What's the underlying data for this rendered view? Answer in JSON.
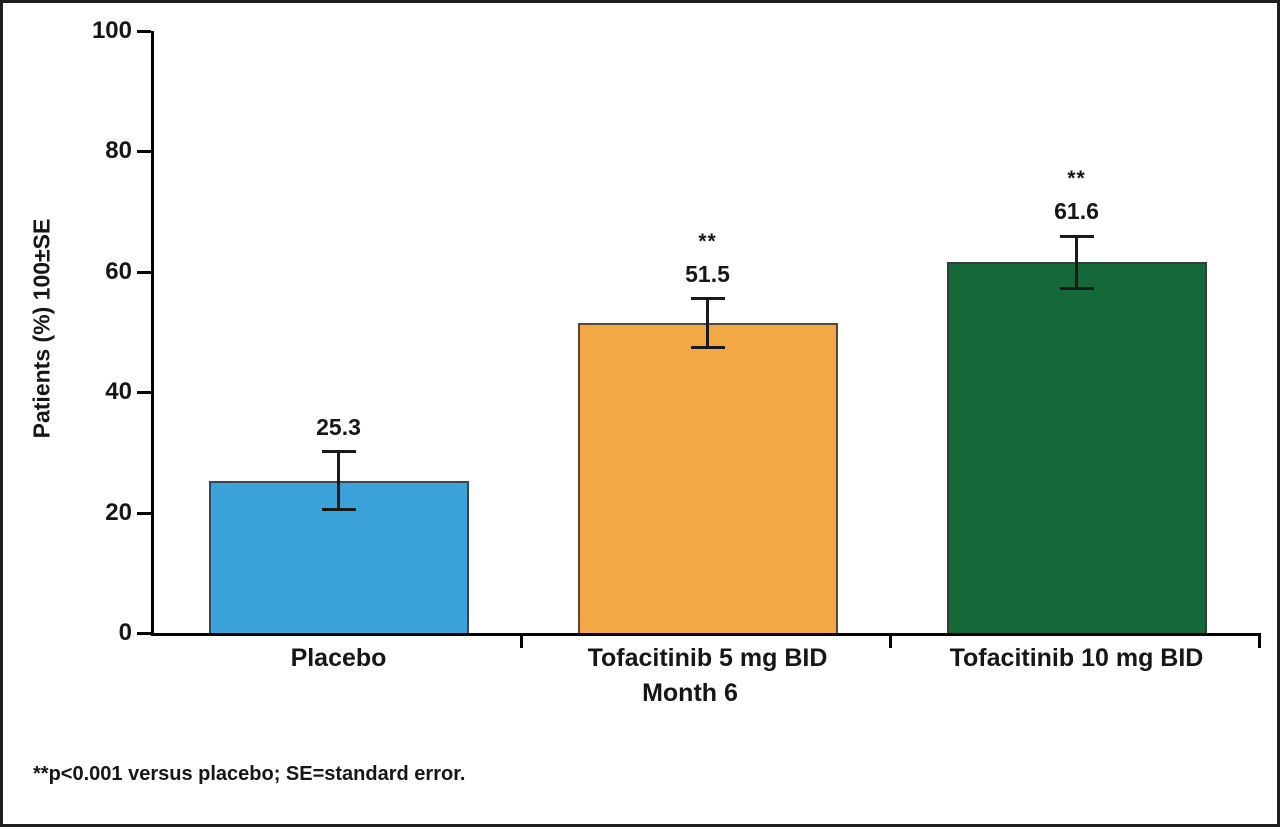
{
  "chart_data": {
    "type": "bar",
    "title": "",
    "categories": [
      "Placebo",
      "Tofacitinib 5 mg BID",
      "Tofacitinib 10 mg BID"
    ],
    "values": [
      25.3,
      51.5,
      61.6
    ],
    "standard_errors": [
      4.8,
      4.0,
      4.3
    ],
    "value_labels": [
      "25.3",
      "51.5",
      "61.6"
    ],
    "significance_markers": [
      "",
      "**",
      "**"
    ],
    "bar_colors": [
      "#3BA2DA",
      "#F1A845",
      "#156938"
    ],
    "bar_border_color": "#3c3c3c",
    "axis_color": "#000000",
    "ylabel": "Patients (%) 100±SE",
    "xlabel": "Month 6",
    "ylim": [
      0,
      100
    ],
    "yticks": [
      "0",
      "20",
      "40",
      "60",
      "80",
      "100"
    ],
    "ytick_values": [
      0,
      20,
      40,
      60,
      80,
      100
    ],
    "grid": "off",
    "legend": "none",
    "error_bars": "vertical with caps",
    "footnote": "**p<0.001 versus placebo; SE=standard error."
  }
}
